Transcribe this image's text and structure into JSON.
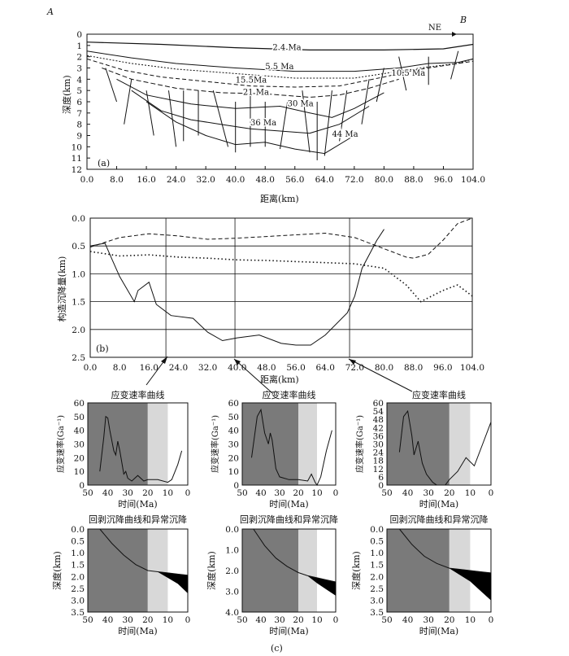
{
  "panel_a": {
    "corner_left": "A",
    "corner_right": "B",
    "direction": "NE",
    "tag": "(a)",
    "ylabel": "深度(km)",
    "xlabel": "距离(km)",
    "yticks": [
      "0",
      "1",
      "2",
      "3",
      "4",
      "5",
      "6",
      "7",
      "8",
      "9",
      "10",
      "11",
      "12"
    ],
    "xticks": [
      "0.0",
      "8.0",
      "16.0",
      "24.0",
      "32.0",
      "40.0",
      "48.0",
      "56.0",
      "64.0",
      "72.0",
      "80.0",
      "88.0",
      "96.0",
      "104.0"
    ],
    "horizon_labels": [
      "2.4 Ma",
      "5.5 Ma",
      "10.5 Ma",
      "15.5Ma",
      "21 Ma",
      "30 Ma",
      "36 Ma",
      "44 Ma"
    ]
  },
  "panel_b": {
    "tag": "(b)",
    "ylabel": "构造沉降量(km)",
    "xlabel": "距离(km)",
    "yticks": [
      "0.0",
      "0.5",
      "1.0",
      "1.5",
      "2.0",
      "2.5"
    ],
    "xticks": [
      "0.0",
      "8.0",
      "16.0",
      "24.0",
      "32.0",
      "40.0",
      "48.0",
      "56.0",
      "64.0",
      "72.0",
      "80.0",
      "88.0",
      "96.0",
      "104.0"
    ]
  },
  "panel_c": {
    "tag": "(c)",
    "strain_title": "应变速率曲线",
    "strain_ylabel": "应变速率(Ga⁻¹)",
    "subsidence_title": "回剥沉降曲线和异常沉降",
    "subsidence_ylabel": "深度(km)",
    "xlabel": "时间(Ma)",
    "xticks": [
      "50",
      "40",
      "30",
      "20",
      "10",
      "0"
    ],
    "strain_yticks_1": [
      "0",
      "10",
      "20",
      "30",
      "40",
      "50",
      "60"
    ],
    "strain_yticks_2": [
      "0",
      "10",
      "20",
      "30",
      "40",
      "50",
      "60"
    ],
    "strain_yticks_3": [
      "0",
      "6",
      "12",
      "18",
      "24",
      "30",
      "36",
      "42",
      "48",
      "54",
      "60"
    ],
    "sub_yticks_1": [
      "0.0",
      "0.5",
      "1.0",
      "1.5",
      "2.0",
      "2.5",
      "3.0",
      "3.5"
    ],
    "sub_yticks_2": [
      "0.0",
      "1.0",
      "2.0",
      "3.0",
      "4.0"
    ],
    "sub_yticks_3": [
      "0.0",
      "0.5",
      "1.0",
      "1.5",
      "2.0",
      "2.5",
      "3.0",
      "3.5"
    ]
  },
  "chart_data": [
    {
      "type": "line",
      "title": "",
      "xlabel": "距离(km)",
      "ylabel": "深度(km)",
      "xlim": [
        0,
        104
      ],
      "ylim": [
        12,
        0
      ],
      "series": [
        {
          "name": "2.4 Ma",
          "x": [
            0,
            20,
            40,
            60,
            80,
            96,
            104
          ],
          "y": [
            0.7,
            0.9,
            1.2,
            1.4,
            1.4,
            1.3,
            0.9
          ]
        },
        {
          "name": "5.5 Ma",
          "x": [
            0,
            12,
            24,
            40,
            56,
            72,
            84,
            92,
            100,
            104
          ],
          "y": [
            1.5,
            2.1,
            2.6,
            3.0,
            3.3,
            3.3,
            3.0,
            2.6,
            2.5,
            2.2
          ]
        },
        {
          "name": "10.5 Ma",
          "x": [
            0,
            12,
            24,
            40,
            56,
            72,
            84,
            92,
            100,
            104
          ],
          "y": [
            1.9,
            2.6,
            3.1,
            3.5,
            3.9,
            3.9,
            3.3,
            2.9,
            2.6,
            2.2
          ]
        },
        {
          "name": "15.5Ma",
          "x": [
            0,
            10,
            20,
            32,
            44,
            56,
            68,
            80,
            88,
            104
          ],
          "y": [
            2.2,
            3.2,
            3.8,
            4.2,
            4.6,
            4.7,
            4.6,
            3.8,
            3.2,
            2.4
          ]
        },
        {
          "name": "21 Ma",
          "x": [
            4,
            12,
            24,
            36,
            48,
            60,
            68,
            76,
            84
          ],
          "y": [
            3.0,
            4.0,
            4.8,
            5.2,
            5.3,
            5.6,
            5.4,
            4.8,
            4.0
          ]
        },
        {
          "name": "30 Ma",
          "x": [
            8,
            16,
            28,
            40,
            52,
            60,
            66,
            72,
            80
          ],
          "y": [
            4.0,
            5.4,
            6.2,
            6.6,
            6.4,
            7.0,
            7.4,
            6.6,
            5.2
          ]
        },
        {
          "name": "36 Ma",
          "x": [
            12,
            20,
            28,
            36,
            44,
            52,
            60,
            68,
            76
          ],
          "y": [
            5.0,
            6.8,
            7.6,
            8.0,
            8.4,
            8.6,
            8.8,
            8.0,
            6.4
          ]
        },
        {
          "name": "44 Ma",
          "x": [
            16,
            24,
            32,
            40,
            48,
            56,
            64,
            72
          ],
          "y": [
            6.0,
            7.8,
            9.0,
            9.8,
            9.6,
            10.2,
            10.6,
            9.0
          ]
        }
      ]
    },
    {
      "type": "line",
      "title": "",
      "xlabel": "距离(km)",
      "ylabel": "构造沉降量(km)",
      "xlim": [
        0,
        104
      ],
      "ylim": [
        2.5,
        0
      ],
      "series": [
        {
          "x": [
            0,
            4,
            6,
            8,
            12,
            13,
            16,
            18,
            22,
            28,
            32,
            36,
            40,
            46,
            52,
            56,
            60,
            64,
            70,
            72,
            74,
            78,
            80
          ],
          "y": [
            0.5,
            0.45,
            0.75,
            1.05,
            1.5,
            1.3,
            1.15,
            1.55,
            1.75,
            1.8,
            2.05,
            2.2,
            2.15,
            2.1,
            2.25,
            2.28,
            2.28,
            2.1,
            1.7,
            1.4,
            0.9,
            0.4,
            0.2
          ]
        },
        {
          "x": [
            0,
            8,
            16,
            24,
            32,
            40,
            48,
            56,
            64,
            72,
            80,
            86,
            88,
            92,
            96,
            100,
            104
          ],
          "y": [
            0.52,
            0.35,
            0.28,
            0.32,
            0.38,
            0.36,
            0.33,
            0.3,
            0.27,
            0.35,
            0.55,
            0.7,
            0.72,
            0.65,
            0.4,
            0.1,
            0.0
          ]
        },
        {
          "x": [
            0,
            8,
            16,
            24,
            32,
            40,
            48,
            56,
            64,
            72,
            80,
            86,
            90,
            96,
            100,
            104
          ],
          "y": [
            0.6,
            0.68,
            0.66,
            0.7,
            0.72,
            0.75,
            0.76,
            0.78,
            0.8,
            0.82,
            0.9,
            1.2,
            1.5,
            1.3,
            1.2,
            1.4
          ]
        }
      ]
    },
    {
      "type": "line",
      "title": "应变速率曲线",
      "xlabel": "时间(Ma)",
      "ylabel": "应变速率(Ga⁻¹)",
      "xlim": [
        50,
        0
      ],
      "ylim": [
        0,
        60
      ],
      "series": [
        {
          "x": [
            44,
            42,
            41,
            40,
            39,
            37,
            36,
            35,
            34,
            32,
            31,
            30,
            28,
            25,
            22,
            20,
            15,
            10,
            8,
            5,
            3
          ],
          "y": [
            10,
            35,
            50,
            49,
            40,
            25,
            22,
            32,
            25,
            8,
            10,
            5,
            3,
            7,
            3,
            4,
            4,
            2,
            4,
            15,
            25
          ]
        }
      ]
    },
    {
      "type": "line",
      "title": "应变速率曲线",
      "xlabel": "时间(Ma)",
      "ylabel": "应变速率(Ga⁻¹)",
      "xlim": [
        50,
        0
      ],
      "ylim": [
        0,
        60
      ],
      "series": [
        {
          "x": [
            45,
            42,
            40,
            38,
            36,
            35,
            34,
            32,
            30,
            25,
            20,
            15,
            13,
            11,
            10,
            8,
            5,
            2
          ],
          "y": [
            20,
            50,
            55,
            38,
            30,
            38,
            33,
            12,
            6,
            4,
            4,
            3,
            8,
            2,
            0,
            6,
            25,
            40
          ]
        }
      ]
    },
    {
      "type": "line",
      "title": "应变速率曲线",
      "xlabel": "时间(Ma)",
      "ylabel": "应变速率(Ga⁻¹)",
      "xlim": [
        50,
        0
      ],
      "ylim": [
        0,
        60
      ],
      "series": [
        {
          "x": [
            44,
            42,
            40,
            38,
            37,
            35,
            33,
            31,
            28,
            26,
            22,
            20,
            16,
            12,
            8,
            4,
            0
          ],
          "y": [
            24,
            50,
            54,
            36,
            22,
            32,
            16,
            8,
            2,
            0,
            0,
            4,
            10,
            20,
            14,
            30,
            46
          ]
        }
      ]
    },
    {
      "type": "area",
      "title": "回剥沉降曲线和异常沉降",
      "xlabel": "时间(Ma)",
      "ylabel": "深度(km)",
      "xlim": [
        50,
        0
      ],
      "ylim": [
        3.5,
        0
      ],
      "series": [
        {
          "x": [
            44,
            38,
            32,
            26,
            20,
            15,
            10,
            5,
            0
          ],
          "y": [
            0.0,
            0.6,
            1.1,
            1.5,
            1.75,
            1.8,
            1.85,
            1.9,
            1.95
          ]
        },
        {
          "x": [
            15,
            10,
            5,
            0
          ],
          "y": [
            1.8,
            2.05,
            2.3,
            2.7
          ]
        }
      ]
    },
    {
      "type": "area",
      "title": "回剥沉降曲线和异常沉降",
      "xlabel": "时间(Ma)",
      "ylabel": "深度(km)",
      "xlim": [
        50,
        0
      ],
      "ylim": [
        4.0,
        0
      ],
      "series": [
        {
          "x": [
            44,
            38,
            32,
            26,
            20,
            15,
            10,
            5,
            0
          ],
          "y": [
            0.0,
            0.8,
            1.4,
            1.8,
            2.1,
            2.25,
            2.35,
            2.45,
            2.55
          ]
        },
        {
          "x": [
            15,
            10,
            5,
            0
          ],
          "y": [
            2.25,
            2.6,
            2.9,
            3.2
          ]
        }
      ]
    },
    {
      "type": "area",
      "title": "回剥沉降曲线和异常沉降",
      "xlabel": "时间(Ma)",
      "ylabel": "深度(km)",
      "xlim": [
        50,
        0
      ],
      "ylim": [
        3.5,
        0
      ],
      "series": [
        {
          "x": [
            44,
            38,
            32,
            26,
            20,
            15,
            10,
            5,
            0
          ],
          "y": [
            0.0,
            0.65,
            1.15,
            1.45,
            1.65,
            1.7,
            1.75,
            1.8,
            1.85
          ]
        },
        {
          "x": [
            20,
            10,
            5,
            0
          ],
          "y": [
            1.65,
            2.2,
            2.6,
            3.0
          ]
        }
      ]
    }
  ]
}
